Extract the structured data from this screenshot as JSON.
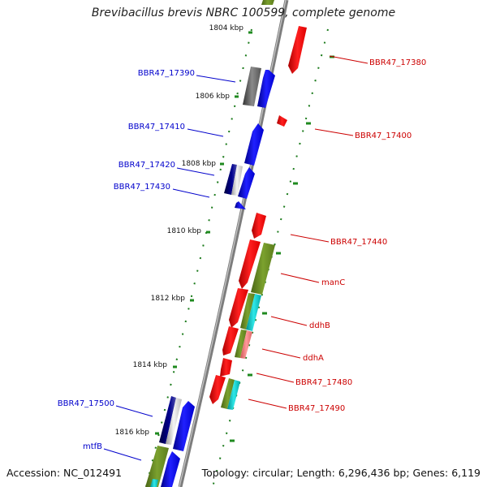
{
  "title": "Brevibacillus brevis NBRC 100599, complete genome",
  "accession": "Accession: NC_012491",
  "topology": "Topology: circular; Length: 6,296,436 bp; Genes: 6,119",
  "colors": {
    "forward_gene": "#0000ff",
    "reverse_gene": "#ff0000",
    "cds_feature": "#6b8e23",
    "cyan_feature": "#00cccc",
    "gray_gene": "#666666",
    "navy_gene": "#000080",
    "grid_tick": "#008000",
    "forward_label": "#0000cc",
    "reverse_label": "#cc0000"
  },
  "ruler": [
    {
      "label": "1804 kbp"
    },
    {
      "label": "1806 kbp"
    },
    {
      "label": "1808 kbp"
    },
    {
      "label": "1810 kbp"
    },
    {
      "label": "1812 kbp"
    },
    {
      "label": "1814 kbp"
    },
    {
      "label": "1816 kbp"
    }
  ],
  "forward_labels": [
    {
      "text": "BBR47_17390"
    },
    {
      "text": "BBR47_17410"
    },
    {
      "text": "BBR47_17420"
    },
    {
      "text": "BBR47_17430"
    },
    {
      "text": "BBR47_17500"
    },
    {
      "text": "mtfB"
    }
  ],
  "reverse_labels": [
    {
      "text": "BBR47_17380"
    },
    {
      "text": "BBR47_17400"
    },
    {
      "text": "BBR47_17440"
    },
    {
      "text": "manC"
    },
    {
      "text": "ddhB"
    },
    {
      "text": "ddhA"
    },
    {
      "text": "BBR47_17480"
    },
    {
      "text": "BBR47_17490"
    }
  ]
}
